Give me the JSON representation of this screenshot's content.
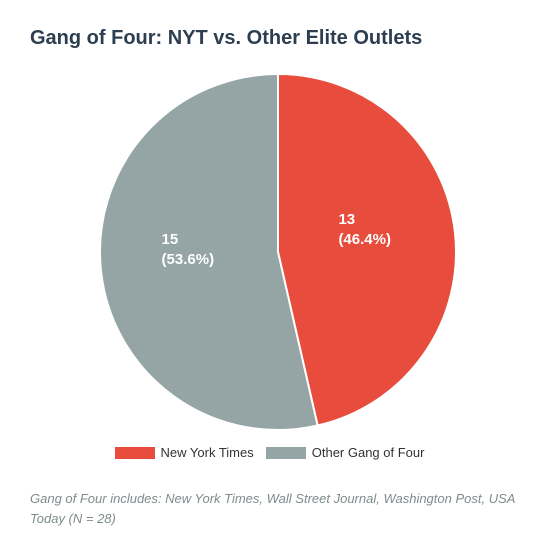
{
  "chart_data": {
    "type": "pie",
    "title": "Gang of Four: NYT vs. Other Elite Outlets",
    "categories": [
      "New York Times",
      "Other Gang of Four"
    ],
    "values": [
      13,
      15
    ],
    "percent_labels": [
      "(46.4%)",
      "(53.6%)"
    ],
    "value_labels": [
      "13",
      "15"
    ],
    "colors": [
      "#e74c3c",
      "#95a5a6"
    ],
    "legend_position": "bottom",
    "start_angle": "top",
    "direction": "clockwise"
  },
  "footnote": "Gang of Four includes: New York Times, Wall Street Journal, Washington Post, USA Today (N = 28)"
}
